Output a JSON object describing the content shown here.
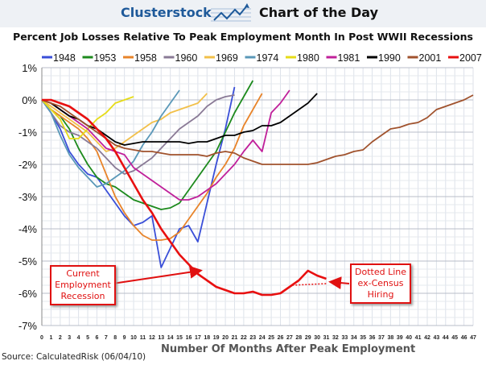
{
  "header": {
    "brand": "Clusterstock",
    "tagline": "Chart of the Day"
  },
  "source": "Source: CalculatedRisk (06/04/10)",
  "chart_data": {
    "type": "line",
    "title": "Percent Job Losses Relative To Peak Employment Month In Post WWII Recessions",
    "xlabel": "Number Of Months After Peak Employment",
    "ylabel": "",
    "xlim": [
      0,
      47
    ],
    "ylim": [
      -7,
      1
    ],
    "x_ticks": [
      0,
      1,
      2,
      3,
      4,
      5,
      6,
      7,
      8,
      9,
      10,
      11,
      12,
      13,
      14,
      15,
      16,
      17,
      18,
      19,
      20,
      21,
      22,
      23,
      24,
      25,
      26,
      27,
      28,
      29,
      30,
      31,
      32,
      33,
      34,
      35,
      36,
      37,
      38,
      39,
      40,
      41,
      42,
      43,
      44,
      45,
      46,
      47
    ],
    "y_ticks": [
      1,
      0,
      -1,
      -2,
      -3,
      -4,
      -5,
      -6,
      -7
    ],
    "y_tick_labels": [
      "1%",
      "0%",
      "-1%",
      "-2%",
      "-3%",
      "-4%",
      "-5%",
      "-6%",
      "-7%"
    ],
    "grid": true,
    "legend_position": "top",
    "series": [
      {
        "name": "1948",
        "color": "#3a4fd8",
        "values": [
          0,
          -0.4,
          -0.9,
          -1.6,
          -2.0,
          -2.3,
          -2.4,
          -2.8,
          -3.2,
          -3.6,
          -3.9,
          -3.8,
          -3.6,
          -5.2,
          -4.6,
          -4.0,
          -3.9,
          -4.4,
          -3.2,
          -2.0,
          -0.9,
          0.4
        ]
      },
      {
        "name": "1953",
        "color": "#1d8a1d",
        "values": [
          0,
          -0.3,
          -0.5,
          -0.9,
          -1.5,
          -2.0,
          -2.4,
          -2.6,
          -2.7,
          -2.9,
          -3.1,
          -3.2,
          -3.3,
          -3.4,
          -3.35,
          -3.2,
          -2.8,
          -2.4,
          -2.0,
          -1.6,
          -1.0,
          -0.4,
          0.1,
          0.6
        ]
      },
      {
        "name": "1958",
        "color": "#e8842a",
        "values": [
          0,
          -0.3,
          -0.5,
          -0.7,
          -0.9,
          -1.2,
          -1.6,
          -2.3,
          -3.0,
          -3.5,
          -3.9,
          -4.2,
          -4.35,
          -4.35,
          -4.3,
          -4.1,
          -3.7,
          -3.3,
          -2.9,
          -2.4,
          -2.0,
          -1.5,
          -0.8,
          -0.3,
          0.2
        ]
      },
      {
        "name": "1960",
        "color": "#8a7a96",
        "values": [
          0,
          -0.4,
          -0.8,
          -1.0,
          -1.1,
          -1.3,
          -1.5,
          -1.8,
          -2.1,
          -2.3,
          -2.2,
          -2.0,
          -1.8,
          -1.5,
          -1.2,
          -0.9,
          -0.7,
          -0.5,
          -0.2,
          0.0,
          0.1,
          0.15
        ]
      },
      {
        "name": "1969",
        "color": "#f2c04a",
        "values": [
          0,
          -0.2,
          -0.4,
          -0.6,
          -0.8,
          -1.0,
          -1.3,
          -1.6,
          -1.5,
          -1.3,
          -1.1,
          -0.9,
          -0.7,
          -0.6,
          -0.4,
          -0.3,
          -0.2,
          -0.1,
          0.2
        ]
      },
      {
        "name": "1974",
        "color": "#5a98b8",
        "values": [
          0,
          -0.4,
          -1.1,
          -1.7,
          -2.1,
          -2.4,
          -2.7,
          -2.6,
          -2.4,
          -2.2,
          -1.9,
          -1.4,
          -1.0,
          -0.5,
          -0.1,
          0.3
        ]
      },
      {
        "name": "1980",
        "color": "#e6dc18",
        "values": [
          0,
          -0.3,
          -0.6,
          -1.2,
          -1.2,
          -0.9,
          -0.6,
          -0.4,
          -0.1,
          0.0,
          0.1
        ]
      },
      {
        "name": "1981",
        "color": "#c0209a",
        "values": [
          0,
          -0.1,
          -0.3,
          -0.5,
          -0.7,
          -0.9,
          -1.2,
          -1.5,
          -1.6,
          -1.7,
          -2.1,
          -2.3,
          -2.5,
          -2.7,
          -2.9,
          -3.1,
          -3.1,
          -3.0,
          -2.8,
          -2.6,
          -2.3,
          -2.0,
          -1.6,
          -1.25,
          -1.6,
          -0.4,
          -0.1,
          0.3
        ]
      },
      {
        "name": "1990",
        "color": "#000000",
        "values": [
          0,
          -0.1,
          -0.3,
          -0.5,
          -0.6,
          -0.8,
          -0.9,
          -1.1,
          -1.3,
          -1.4,
          -1.35,
          -1.3,
          -1.3,
          -1.3,
          -1.3,
          -1.3,
          -1.35,
          -1.3,
          -1.3,
          -1.2,
          -1.1,
          -1.1,
          -1.0,
          -0.95,
          -0.8,
          -0.8,
          -0.7,
          -0.5,
          -0.3,
          -0.1,
          0.2
        ]
      },
      {
        "name": "2001",
        "color": "#a0522d",
        "values": [
          0,
          -0.1,
          -0.2,
          -0.4,
          -0.6,
          -0.8,
          -1.0,
          -1.2,
          -1.4,
          -1.5,
          -1.55,
          -1.6,
          -1.6,
          -1.65,
          -1.7,
          -1.7,
          -1.7,
          -1.7,
          -1.75,
          -1.65,
          -1.6,
          -1.65,
          -1.8,
          -1.9,
          -2.0,
          -2.0,
          -2.0,
          -2.0,
          -2.0,
          -2.0,
          -1.95,
          -1.85,
          -1.75,
          -1.7,
          -1.6,
          -1.55,
          -1.3,
          -1.1,
          -0.9,
          -0.85,
          -0.75,
          -0.7,
          -0.55,
          -0.3,
          -0.2,
          -0.1,
          0.0,
          0.15
        ]
      },
      {
        "name": "2007",
        "color": "#e81010",
        "values": [
          0,
          0,
          -0.1,
          -0.2,
          -0.4,
          -0.6,
          -0.9,
          -1.2,
          -1.6,
          -2.1,
          -2.6,
          -3.1,
          -3.5,
          -4.0,
          -4.4,
          -4.8,
          -5.1,
          -5.4,
          -5.6,
          -5.8,
          -5.9,
          -6.0,
          -6.0,
          -5.95,
          -6.05,
          -6.05,
          -6.0,
          -5.8,
          -5.6,
          -5.3,
          -5.45,
          -5.55
        ]
      }
    ],
    "dotted_line": {
      "label": "ex-Census",
      "color": "#e81010",
      "x": [
        27.3,
        31
      ],
      "y": [
        -5.75,
        -5.7
      ]
    },
    "annotations": [
      {
        "text": [
          "Current",
          "Employment",
          "Recession"
        ]
      },
      {
        "text": [
          "Dotted Line",
          "ex-Census",
          "Hiring"
        ]
      }
    ]
  }
}
